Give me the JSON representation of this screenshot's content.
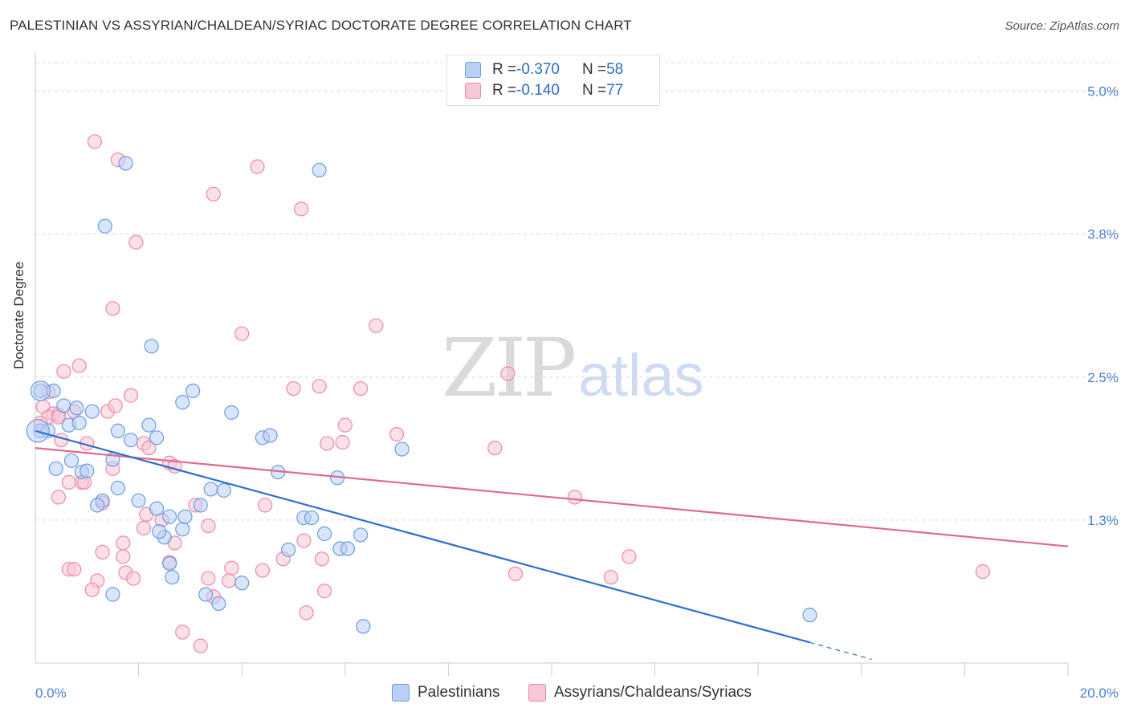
{
  "header": {
    "title": "PALESTINIAN VS ASSYRIAN/CHALDEAN/SYRIAC DOCTORATE DEGREE CORRELATION CHART",
    "source": "Source: ZipAtlas.com"
  },
  "watermark": {
    "zip": "ZIP",
    "atlas": "atlas"
  },
  "legend": {
    "rows": [
      {
        "r_label": "R = ",
        "r_value": "-0.370",
        "n_label": "N = ",
        "n_value": "58"
      },
      {
        "r_label": "R = ",
        "r_value": "-0.140",
        "n_label": "N = ",
        "n_value": "77"
      }
    ]
  },
  "bottom_legend": {
    "series1": "Palestinians",
    "series2": "Assyrians/Chaldeans/Syriacs"
  },
  "colors": {
    "blue_fill": "#b8d0f5",
    "blue_stroke": "#6c9de0",
    "blue_line": "#2e6fd0",
    "pink_fill": "#f9c6d6",
    "pink_stroke": "#ec8aa8",
    "pink_line": "#e0698f",
    "axis_label": "#4a7fd0",
    "grid": "#d8d8d8"
  },
  "chart_data": {
    "type": "scatter",
    "title": "PALESTINIAN VS ASSYRIAN/CHALDEAN/SYRIAC DOCTORATE DEGREE CORRELATION CHART",
    "xlabel": "",
    "ylabel": "Doctorate Degree",
    "xlim": [
      0,
      20
    ],
    "ylim": [
      0,
      5.25
    ],
    "x_tick_labels": [
      "0.0%",
      "20.0%"
    ],
    "y_ticks": [
      1.25,
      2.5,
      3.75,
      5.0
    ],
    "y_tick_labels": [
      "1.3%",
      "2.5%",
      "3.8%",
      "5.0%"
    ],
    "grid": true,
    "series": [
      {
        "name": "Palestinians",
        "R": -0.37,
        "N": 58,
        "trend": {
          "x0": 0,
          "y0": 2.03,
          "x1": 15.0,
          "y1": 0.18,
          "dashed_to_x": 16.2
        },
        "points": [
          [
            0.1,
            2.03
          ],
          [
            0.1,
            2.38
          ],
          [
            0.25,
            2.03
          ],
          [
            0.35,
            2.38
          ],
          [
            0.55,
            2.25
          ],
          [
            0.8,
            2.23
          ],
          [
            0.65,
            2.08
          ],
          [
            0.85,
            2.1
          ],
          [
            1.1,
            2.2
          ],
          [
            1.35,
            3.82
          ],
          [
            1.75,
            4.37
          ],
          [
            1.6,
            2.03
          ],
          [
            1.85,
            1.95
          ],
          [
            2.35,
            1.97
          ],
          [
            2.2,
            2.08
          ],
          [
            2.25,
            2.77
          ],
          [
            2.85,
            2.28
          ],
          [
            3.05,
            2.38
          ],
          [
            3.8,
            2.19
          ],
          [
            4.4,
            1.97
          ],
          [
            4.55,
            1.99
          ],
          [
            5.5,
            4.31
          ],
          [
            0.4,
            1.7
          ],
          [
            0.7,
            1.77
          ],
          [
            0.9,
            1.67
          ],
          [
            1.0,
            1.68
          ],
          [
            1.5,
            1.78
          ],
          [
            1.6,
            1.53
          ],
          [
            1.3,
            1.42
          ],
          [
            1.2,
            1.38
          ],
          [
            2.0,
            1.42
          ],
          [
            2.35,
            1.35
          ],
          [
            2.6,
            1.28
          ],
          [
            2.5,
            1.1
          ],
          [
            2.4,
            1.15
          ],
          [
            2.85,
            1.17
          ],
          [
            2.9,
            1.28
          ],
          [
            3.2,
            1.38
          ],
          [
            3.4,
            1.52
          ],
          [
            3.65,
            1.51
          ],
          [
            4.7,
            1.67
          ],
          [
            5.2,
            1.27
          ],
          [
            5.35,
            1.27
          ],
          [
            5.6,
            1.13
          ],
          [
            5.9,
            1.0
          ],
          [
            6.05,
            1.0
          ],
          [
            6.3,
            1.12
          ],
          [
            5.85,
            1.62
          ],
          [
            7.1,
            1.87
          ],
          [
            2.6,
            0.87
          ],
          [
            2.65,
            0.75
          ],
          [
            1.5,
            0.6
          ],
          [
            3.3,
            0.6
          ],
          [
            3.55,
            0.52
          ],
          [
            4.0,
            0.7
          ],
          [
            4.9,
            0.99
          ],
          [
            6.35,
            0.32
          ],
          [
            15.0,
            0.42
          ]
        ]
      },
      {
        "name": "Assyrians/Chaldeans/Syriacs",
        "R": -0.14,
        "N": 77,
        "trend": {
          "x0": 0,
          "y0": 1.88,
          "x1": 20.0,
          "y1": 1.02
        },
        "points": [
          [
            1.15,
            4.56
          ],
          [
            1.6,
            4.4
          ],
          [
            4.3,
            4.34
          ],
          [
            3.45,
            4.1
          ],
          [
            5.15,
            3.97
          ],
          [
            1.95,
            3.68
          ],
          [
            1.5,
            3.1
          ],
          [
            4.0,
            2.88
          ],
          [
            6.6,
            2.95
          ],
          [
            0.55,
            2.55
          ],
          [
            0.85,
            2.6
          ],
          [
            0.25,
            2.37
          ],
          [
            0.15,
            2.24
          ],
          [
            0.35,
            2.18
          ],
          [
            0.25,
            2.15
          ],
          [
            0.45,
            2.17
          ],
          [
            0.1,
            2.1
          ],
          [
            0.75,
            2.2
          ],
          [
            1.4,
            2.2
          ],
          [
            1.55,
            2.25
          ],
          [
            1.85,
            2.34
          ],
          [
            5.0,
            2.4
          ],
          [
            5.5,
            2.42
          ],
          [
            6.3,
            2.4
          ],
          [
            6.0,
            2.08
          ],
          [
            7.0,
            2.0
          ],
          [
            9.15,
            2.53
          ],
          [
            0.5,
            1.95
          ],
          [
            1.0,
            1.92
          ],
          [
            2.1,
            1.92
          ],
          [
            2.2,
            1.88
          ],
          [
            5.65,
            1.92
          ],
          [
            5.95,
            1.93
          ],
          [
            8.9,
            1.88
          ],
          [
            2.6,
            1.75
          ],
          [
            2.7,
            1.72
          ],
          [
            1.5,
            1.7
          ],
          [
            0.65,
            1.58
          ],
          [
            0.9,
            1.58
          ],
          [
            0.95,
            1.58
          ],
          [
            0.45,
            1.45
          ],
          [
            1.3,
            1.4
          ],
          [
            3.1,
            1.38
          ],
          [
            4.45,
            1.38
          ],
          [
            2.15,
            1.3
          ],
          [
            2.45,
            1.25
          ],
          [
            3.35,
            1.2
          ],
          [
            2.1,
            1.18
          ],
          [
            2.7,
            1.05
          ],
          [
            1.7,
            1.05
          ],
          [
            1.3,
            0.97
          ],
          [
            1.7,
            0.93
          ],
          [
            5.2,
            1.07
          ],
          [
            5.55,
            0.91
          ],
          [
            4.8,
            0.91
          ],
          [
            2.6,
            0.88
          ],
          [
            4.4,
            0.81
          ],
          [
            3.8,
            0.83
          ],
          [
            3.35,
            0.74
          ],
          [
            3.75,
            0.72
          ],
          [
            0.65,
            0.82
          ],
          [
            0.75,
            0.82
          ],
          [
            1.75,
            0.79
          ],
          [
            1.9,
            0.74
          ],
          [
            1.2,
            0.72
          ],
          [
            1.1,
            0.64
          ],
          [
            3.45,
            0.58
          ],
          [
            5.6,
            0.63
          ],
          [
            5.25,
            0.44
          ],
          [
            2.85,
            0.27
          ],
          [
            3.2,
            0.15
          ],
          [
            9.3,
            0.78
          ],
          [
            10.45,
            1.45
          ],
          [
            11.15,
            0.75
          ],
          [
            11.5,
            0.93
          ],
          [
            18.35,
            0.8
          ],
          [
            0.45,
            2.15
          ]
        ]
      }
    ]
  }
}
